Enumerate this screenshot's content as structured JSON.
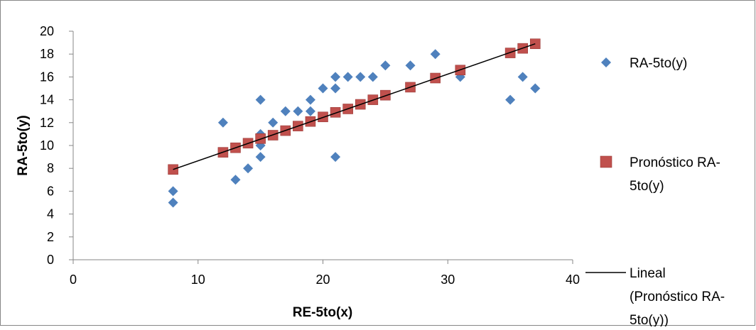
{
  "chart_data": {
    "type": "scatter",
    "title": "",
    "xlabel": "RE-5to(x)",
    "ylabel": "RA-5to(y)",
    "xlim": [
      0,
      40
    ],
    "ylim": [
      0,
      20
    ],
    "x_ticks": [
      "0",
      "10",
      "20",
      "30",
      "40"
    ],
    "y_ticks": [
      "0",
      "2",
      "4",
      "6",
      "8",
      "10",
      "12",
      "14",
      "16",
      "18",
      "20"
    ],
    "grid": false,
    "legend_position": "right",
    "series": [
      {
        "name": "RA-5to(y)",
        "marker": "diamond",
        "color": "#4f81bd",
        "points": [
          [
            8,
            6
          ],
          [
            8,
            5
          ],
          [
            12,
            12
          ],
          [
            13,
            7
          ],
          [
            14,
            8
          ],
          [
            15,
            14
          ],
          [
            15,
            11
          ],
          [
            15,
            10
          ],
          [
            15,
            9
          ],
          [
            16,
            12
          ],
          [
            17,
            13
          ],
          [
            18,
            13
          ],
          [
            19,
            14
          ],
          [
            19,
            13
          ],
          [
            20,
            15
          ],
          [
            21,
            16
          ],
          [
            21,
            15
          ],
          [
            21,
            9
          ],
          [
            22,
            16
          ],
          [
            23,
            16
          ],
          [
            24,
            16
          ],
          [
            25,
            17
          ],
          [
            27,
            17
          ],
          [
            29,
            18
          ],
          [
            31,
            16
          ],
          [
            35,
            14
          ],
          [
            36,
            16
          ],
          [
            37,
            15
          ]
        ]
      },
      {
        "name": "Pronóstico RA-5to(y)",
        "marker": "square",
        "color": "#c0504d",
        "points": [
          [
            8,
            7.9
          ],
          [
            12,
            9.4
          ],
          [
            13,
            9.8
          ],
          [
            14,
            10.2
          ],
          [
            15,
            10.6
          ],
          [
            16,
            10.9
          ],
          [
            17,
            11.3
          ],
          [
            18,
            11.7
          ],
          [
            19,
            12.1
          ],
          [
            20,
            12.5
          ],
          [
            21,
            12.9
          ],
          [
            22,
            13.2
          ],
          [
            23,
            13.6
          ],
          [
            24,
            14.0
          ],
          [
            25,
            14.4
          ],
          [
            27,
            15.1
          ],
          [
            29,
            15.9
          ],
          [
            31,
            16.6
          ],
          [
            35,
            18.1
          ],
          [
            36,
            18.5
          ],
          [
            37,
            18.9
          ]
        ]
      },
      {
        "name": "Lineal (Pronóstico RA-5to(y))",
        "type": "line",
        "color": "#000000",
        "points": [
          [
            8,
            7.9
          ],
          [
            37,
            18.9
          ]
        ]
      }
    ],
    "legend": [
      {
        "lines": [
          "RA-5to(y)"
        ],
        "marker": "diamond",
        "color": "#4f81bd"
      },
      {
        "lines": [
          "Pronóstico RA-",
          "5to(y)"
        ],
        "marker": "square",
        "color": "#c0504d"
      },
      {
        "lines": [
          "Lineal",
          "(Pronóstico RA-",
          "5to(y))"
        ],
        "marker": "line",
        "color": "#000000"
      }
    ]
  }
}
